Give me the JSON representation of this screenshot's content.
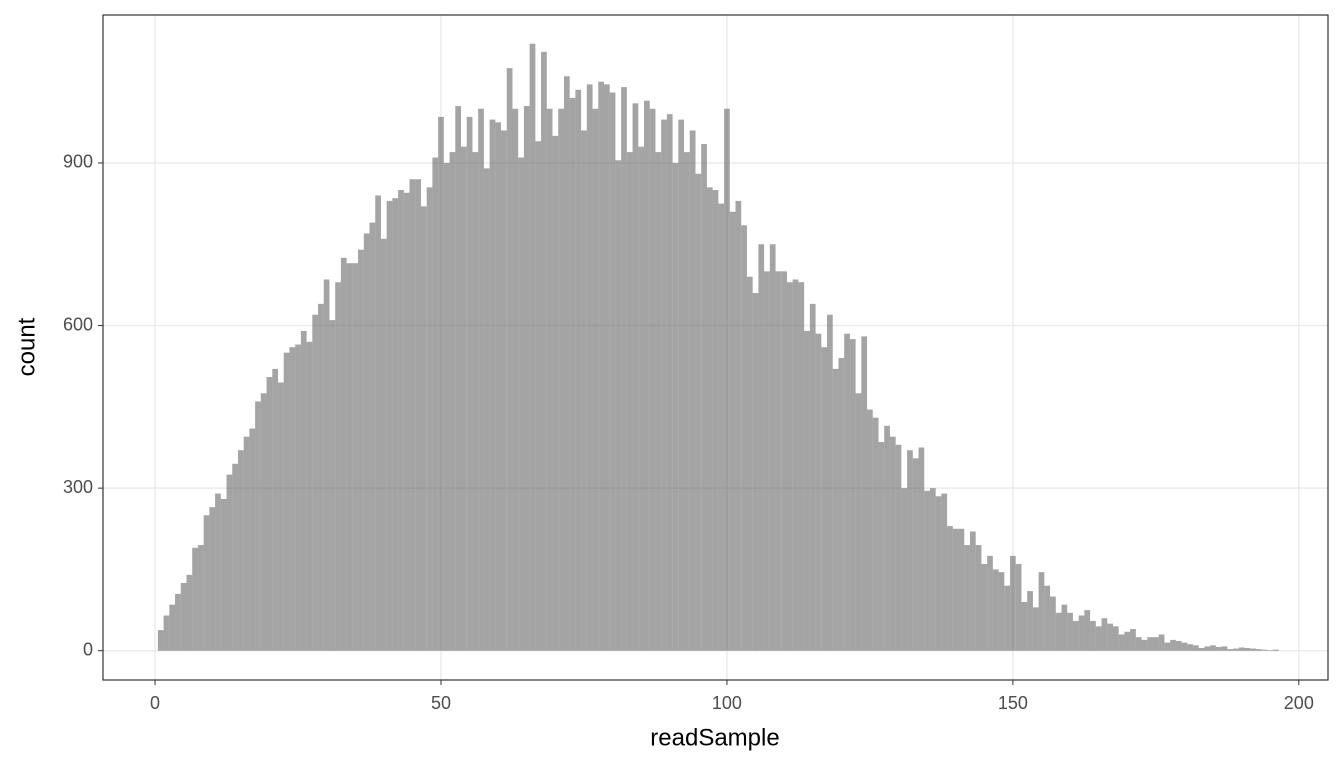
{
  "chart_data": {
    "type": "histogram",
    "x_label": "readSample",
    "y_label": "count",
    "bins": [
      0.5,
      1.5,
      2.5,
      3.5,
      4.5,
      5.5,
      6.5,
      7.5,
      8.5,
      9.5,
      10.5,
      11.5,
      12.5,
      13.5,
      14.5,
      15.5,
      16.5,
      17.5,
      18.5,
      19.5,
      20.5,
      21.5,
      22.5,
      23.5,
      24.5,
      25.5,
      26.5,
      27.5,
      28.5,
      29.5,
      30.5,
      31.5,
      32.5,
      33.5,
      34.5,
      35.5,
      36.5,
      37.5,
      38.5,
      39.5,
      40.5,
      41.5,
      42.5,
      43.5,
      44.5,
      45.5,
      46.5,
      47.5,
      48.5,
      49.5,
      50.5,
      51.5,
      52.5,
      53.5,
      54.5,
      55.5,
      56.5,
      57.5,
      58.5,
      59.5,
      60.5,
      61.5,
      62.5,
      63.5,
      64.5,
      65.5,
      66.5,
      67.5,
      68.5,
      69.5,
      70.5,
      71.5,
      72.5,
      73.5,
      74.5,
      75.5,
      76.5,
      77.5,
      78.5,
      79.5,
      80.5,
      81.5,
      82.5,
      83.5,
      84.5,
      85.5,
      86.5,
      87.5,
      88.5,
      89.5,
      90.5,
      91.5,
      92.5,
      93.5,
      94.5,
      95.5,
      96.5,
      97.5,
      98.5,
      99.5,
      100.5,
      101.5,
      102.5,
      103.5,
      104.5,
      105.5,
      106.5,
      107.5,
      108.5,
      109.5,
      110.5,
      111.5,
      112.5,
      113.5,
      114.5,
      115.5,
      116.5,
      117.5,
      118.5,
      119.5,
      120.5,
      121.5,
      122.5,
      123.5,
      124.5,
      125.5,
      126.5,
      127.5,
      128.5,
      129.5,
      130.5,
      131.5,
      132.5,
      133.5,
      134.5,
      135.5,
      136.5,
      137.5,
      138.5,
      139.5,
      140.5,
      141.5,
      142.5,
      143.5,
      144.5,
      145.5,
      146.5,
      147.5,
      148.5,
      149.5,
      150.5,
      151.5,
      152.5,
      153.5,
      154.5,
      155.5,
      156.5,
      157.5,
      158.5,
      159.5,
      160.5,
      161.5,
      162.5,
      163.5,
      164.5,
      165.5,
      166.5,
      167.5,
      168.5,
      169.5,
      170.5,
      171.5,
      172.5,
      173.5,
      174.5,
      175.5,
      176.5,
      177.5,
      178.5,
      179.5,
      180.5,
      181.5,
      182.5,
      183.5,
      184.5,
      185.5,
      186.5,
      187.5,
      188.5,
      189.5,
      190.5,
      191.5,
      192.5,
      193.5,
      194.5,
      195.5,
      196.5
    ],
    "values": [
      38,
      65,
      85,
      105,
      125,
      140,
      190,
      195,
      250,
      265,
      290,
      280,
      325,
      345,
      370,
      395,
      410,
      460,
      475,
      505,
      520,
      495,
      550,
      560,
      565,
      590,
      570,
      620,
      640,
      685,
      610,
      680,
      725,
      715,
      715,
      740,
      770,
      790,
      840,
      760,
      830,
      835,
      850,
      845,
      870,
      870,
      820,
      855,
      910,
      985,
      900,
      920,
      1005,
      930,
      985,
      920,
      1000,
      890,
      980,
      975,
      960,
      1075,
      1000,
      910,
      1005,
      1120,
      940,
      1105,
      1000,
      950,
      1000,
      1060,
      1020,
      1035,
      960,
      1045,
      1000,
      1050,
      1045,
      1030,
      905,
      1040,
      920,
      1010,
      930,
      1015,
      1000,
      920,
      980,
      990,
      900,
      980,
      920,
      960,
      880,
      935,
      855,
      850,
      825,
      1000,
      810,
      830,
      785,
      690,
      660,
      750,
      700,
      750,
      700,
      700,
      680,
      685,
      680,
      590,
      640,
      585,
      560,
      620,
      520,
      540,
      585,
      575,
      475,
      580,
      445,
      430,
      385,
      415,
      395,
      380,
      300,
      370,
      355,
      375,
      295,
      300,
      285,
      290,
      230,
      225,
      225,
      195,
      220,
      195,
      160,
      175,
      150,
      145,
      120,
      175,
      160,
      90,
      110,
      80,
      145,
      120,
      100,
      70,
      85,
      70,
      55,
      65,
      75,
      55,
      45,
      60,
      50,
      45,
      30,
      35,
      40,
      25,
      20,
      25,
      25,
      30,
      15,
      20,
      18,
      15,
      12,
      10,
      5,
      8,
      10,
      7,
      8,
      3,
      4,
      6,
      5,
      4,
      3,
      2,
      1,
      2
    ],
    "color": "#595959",
    "alpha": 0.55,
    "xlim": [
      -9.1,
      205.1
    ],
    "xticks": [
      0,
      50,
      100,
      150,
      200
    ],
    "ylim": [
      -54,
      1173
    ],
    "yticks": [
      0,
      300,
      600,
      900
    ],
    "grid": true
  }
}
